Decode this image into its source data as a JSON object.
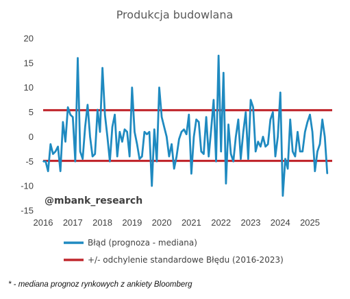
{
  "chart_data": {
    "type": "line",
    "title": "Produkcja budowlana",
    "xlabel": "",
    "ylabel": "",
    "ylim": [
      -15,
      20
    ],
    "yticks": [
      "20",
      "15",
      "10",
      "5",
      "0",
      "-5",
      "-10",
      "-15"
    ],
    "xlim": [
      2016,
      2025.75
    ],
    "xticks": [
      "2016",
      "2017",
      "2018",
      "2019",
      "2020",
      "2021",
      "2022",
      "2023",
      "2024",
      "2025"
    ],
    "grid": false,
    "legend_position": "bottom",
    "series": [
      {
        "name": "Błąd (prognoza - mediana)",
        "color": "#1f8ac0",
        "x_start": 2016.0,
        "step_months": 1,
        "values": [
          -5,
          -5,
          -7,
          -1.5,
          -3.5,
          -3,
          -2,
          -7,
          3,
          -1,
          6,
          4.5,
          4,
          -5,
          16,
          -3,
          -4.5,
          2,
          6.5,
          0,
          -4,
          -3.5,
          5.5,
          1,
          14,
          4.5,
          0,
          -5,
          2,
          4.5,
          -4,
          1,
          -1,
          1.5,
          1,
          -4,
          10,
          1,
          -1.5,
          -4.5,
          -4,
          1,
          0.5,
          1,
          -10,
          1.5,
          -5,
          10,
          4,
          2,
          0,
          -4,
          -1.5,
          -6.5,
          -4,
          -0.5,
          1,
          1.5,
          0.5,
          4.5,
          -7.5,
          0,
          3.5,
          3,
          -3,
          -3.5,
          4,
          -4,
          1.5,
          7.5,
          -5,
          16.5,
          -3,
          13,
          -9.5,
          2.5,
          -3.5,
          -5,
          0,
          3.5,
          -4.5,
          1,
          5,
          -4.5,
          7.5,
          6,
          -3,
          -1,
          -2,
          0,
          -2,
          -1.5,
          3.5,
          5,
          -4,
          0,
          9,
          -12,
          -4.5,
          -6.5,
          3.5,
          -3,
          -4,
          1,
          -3,
          -3,
          1,
          3,
          4.5,
          1,
          -7,
          -3,
          -1.5,
          3.5,
          0,
          -7.5
        ]
      },
      {
        "name": "+/- odchylenie standardowe Błędu (2016-2023)",
        "color": "#c0272d",
        "upper": 5.4,
        "lower": -4.9
      }
    ],
    "annotations": [
      "@mbank_research"
    ],
    "footnote": "* - mediana prognoz rynkowych z ankiety Bloomberg"
  }
}
